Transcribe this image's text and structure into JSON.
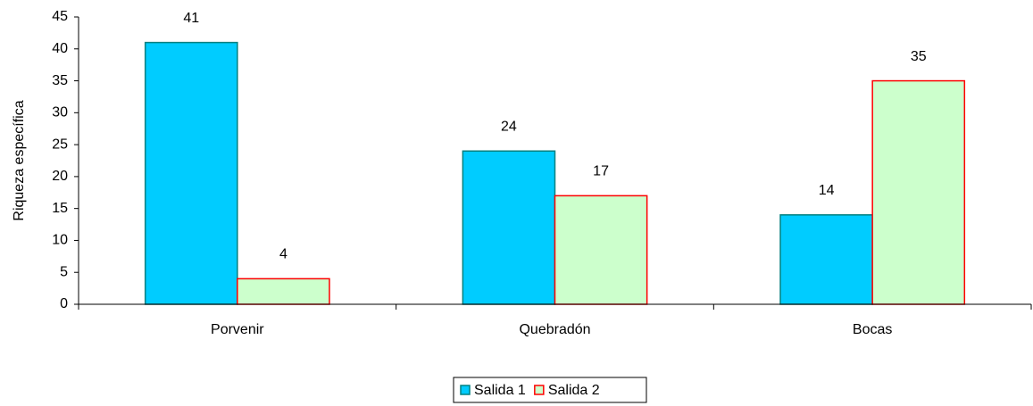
{
  "chart_data": {
    "type": "bar",
    "ylabel": "Riqueza específica",
    "categories": [
      "Porvenir",
      "Quebradón",
      "Bocas"
    ],
    "series": [
      {
        "name": "Salida 1",
        "color": "#00ccff",
        "edgecolor": "#008080",
        "values": [
          41,
          24,
          14
        ]
      },
      {
        "name": "Salida 2",
        "color": "#ccffcc",
        "edgecolor": "#ff0000",
        "values": [
          4,
          17,
          35
        ]
      }
    ],
    "ylim": [
      0,
      45
    ],
    "yticks": [
      0,
      5,
      10,
      15,
      20,
      25,
      30,
      35,
      40,
      45
    ],
    "legend": "bottom"
  }
}
